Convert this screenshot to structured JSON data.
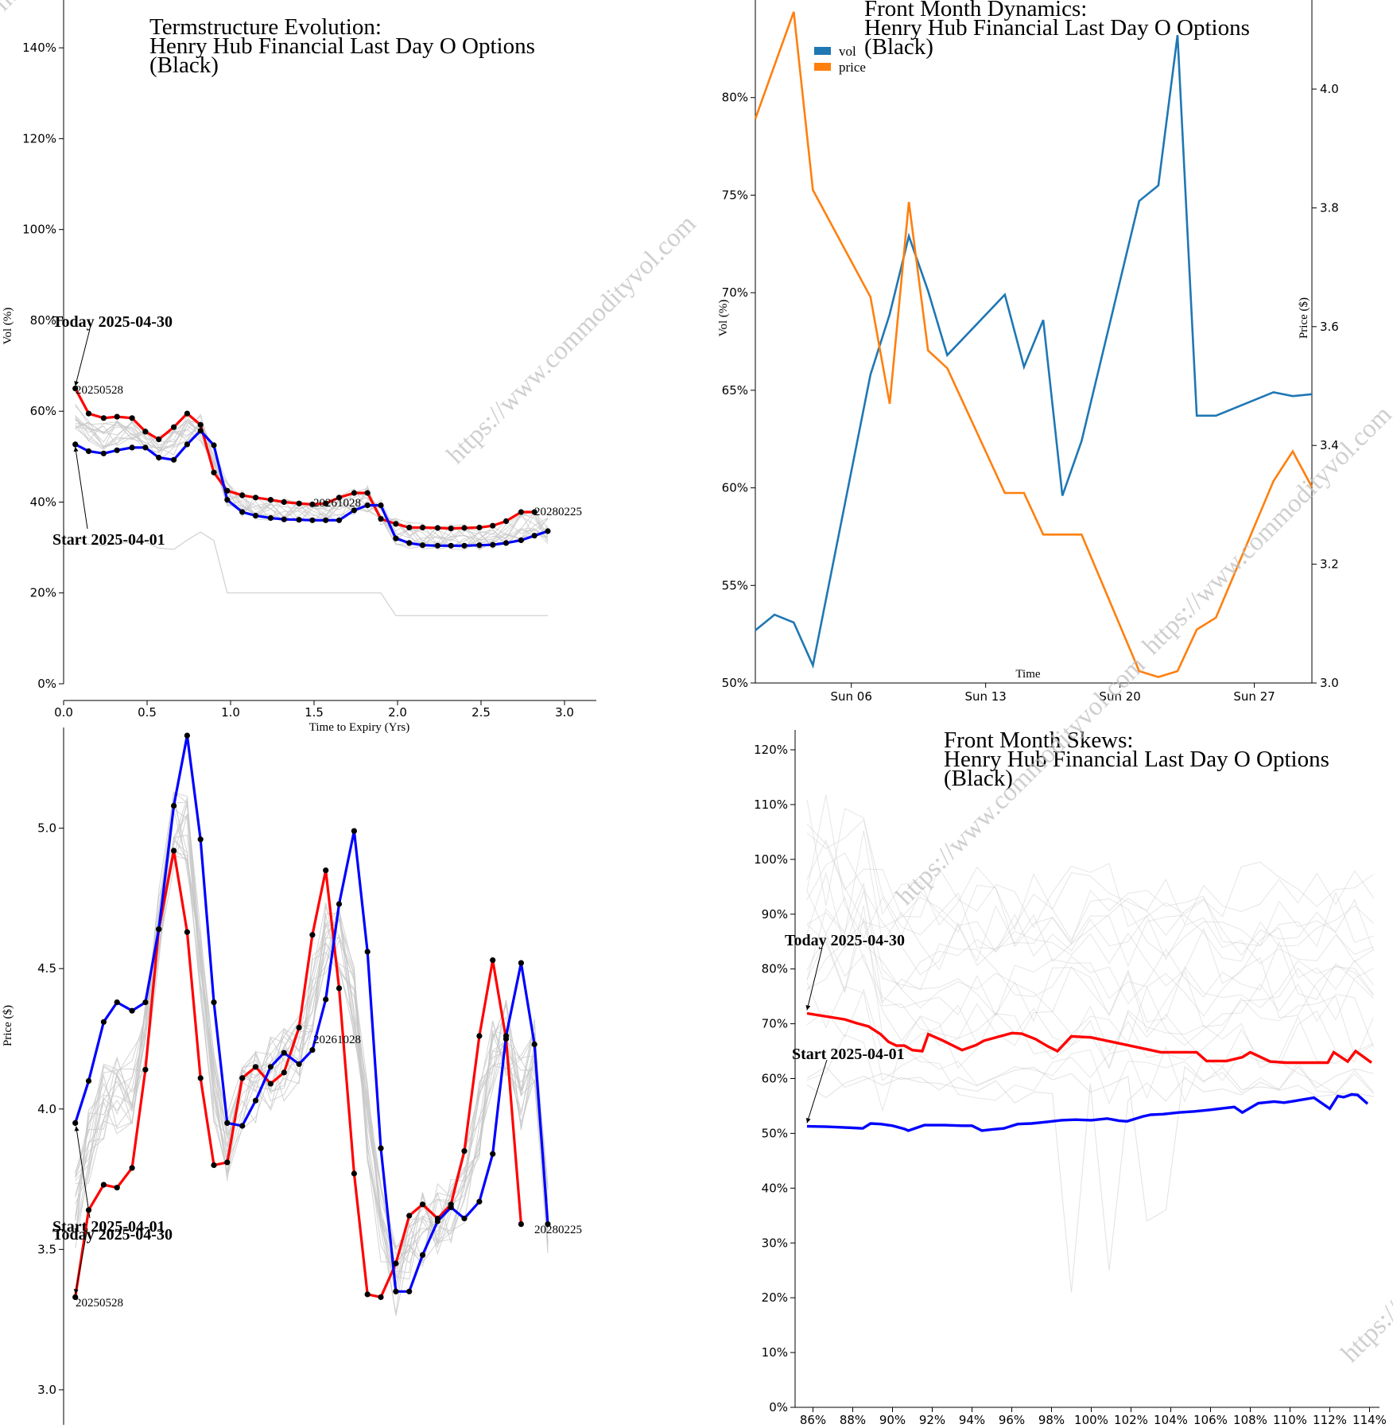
{
  "watermark": "https://www.commodityvol.com",
  "colors": {
    "today": "#ff0000",
    "start": "#0000ff",
    "history": "#c8c8c8",
    "vol": "#1f77b4",
    "price": "#ff7f0e",
    "dot": "#000000"
  },
  "chart_data": [
    {
      "id": "termstructure",
      "type": "line",
      "title": [
        "Termstructure Evolution:",
        "Henry Hub Financial Last Day O Options",
        "(Black)"
      ],
      "xlabel": "Time to Expiry (Yrs)",
      "ylabel": "Vol (%)",
      "xlim": [
        0,
        3.18
      ],
      "ylim": [
        0,
        1.5
      ],
      "xticks": [
        0.0,
        0.5,
        1.0,
        1.5,
        2.0,
        2.5,
        3.0
      ],
      "xtick_labels": [
        "0.0",
        "0.5",
        "1.0",
        "1.5",
        "2.0",
        "2.5",
        "3.0"
      ],
      "yticks": [
        0,
        0.2,
        0.4,
        0.6,
        0.8,
        1.0,
        1.2,
        1.4
      ],
      "ytick_labels": [
        "0%",
        "20%",
        "40%",
        "60%",
        "80%",
        "100%",
        "120%",
        "140%"
      ],
      "annotations": {
        "today_label": "Today 2025-04-30",
        "start_label": "Start 2025-04-01",
        "first_contract": "20250528",
        "mid_contract": "20261028",
        "last_contract": "20280225"
      },
      "x": [
        0.07,
        0.15,
        0.24,
        0.32,
        0.41,
        0.49,
        0.57,
        0.66,
        0.74,
        0.82,
        0.9,
        0.98,
        1.07,
        1.15,
        1.24,
        1.32,
        1.41,
        1.49,
        1.57,
        1.65,
        1.74,
        1.82,
        1.9,
        1.99,
        2.07,
        2.15,
        2.24,
        2.32,
        2.4,
        2.49,
        2.57,
        2.65,
        2.74,
        2.82,
        2.9
      ],
      "series": [
        {
          "name": "Today 2025-04-30",
          "role": "today",
          "values": [
            0.65,
            0.595,
            0.585,
            0.588,
            0.585,
            0.555,
            0.538,
            0.565,
            0.595,
            0.57,
            0.465,
            0.425,
            0.415,
            0.41,
            0.405,
            0.4,
            0.397,
            0.395,
            0.397,
            0.41,
            0.42,
            0.42,
            0.363,
            0.352,
            0.344,
            0.344,
            0.343,
            0.342,
            0.343,
            0.344,
            0.348,
            0.358,
            0.378,
            0.378,
            null
          ]
        },
        {
          "name": "Start 2025-04-01",
          "role": "start",
          "values": [
            0.527,
            0.512,
            0.507,
            0.514,
            0.52,
            0.52,
            0.498,
            0.493,
            0.527,
            0.557,
            0.525,
            0.405,
            0.378,
            0.37,
            0.365,
            0.362,
            0.361,
            0.36,
            0.36,
            0.36,
            0.382,
            0.393,
            0.393,
            0.32,
            0.31,
            0.305,
            0.304,
            0.304,
            0.304,
            0.305,
            0.306,
            0.31,
            0.316,
            0.326,
            0.336
          ]
        }
      ]
    },
    {
      "id": "dynamics",
      "type": "line",
      "title": [
        "Front Month Dynamics:",
        "Henry Hub Financial Last Day O Options",
        "(Black)"
      ],
      "xlabel": "Time",
      "ylabel": "Vol (%)",
      "y2label": "Price ($)",
      "legend": [
        "vol",
        "price"
      ],
      "legend_position": "top-left",
      "xlim": [
        "2025-03-31",
        "2025-04-30"
      ],
      "ylim": [
        0.5,
        0.85
      ],
      "y2lim": [
        3.0,
        4.15
      ],
      "xticks": [
        "2025-04-06",
        "2025-04-13",
        "2025-04-20",
        "2025-04-27"
      ],
      "xtick_labels": [
        "Sun 06",
        "Sun 13",
        "Sun 20",
        "Sun 27"
      ],
      "yticks": [
        0.5,
        0.55,
        0.6,
        0.65,
        0.7,
        0.75,
        0.8
      ],
      "ytick_labels": [
        "50%",
        "55%",
        "60%",
        "65%",
        "70%",
        "75%",
        "80%"
      ],
      "y2ticks": [
        3.0,
        3.2,
        3.4,
        3.6,
        3.8,
        4.0
      ],
      "y2tick_labels": [
        "3.0",
        "3.2",
        "3.4",
        "3.6",
        "3.8",
        "4.0"
      ],
      "x": [
        "2025-04-01",
        "2025-04-02",
        "2025-04-03",
        "2025-04-04",
        "2025-04-07",
        "2025-04-08",
        "2025-04-09",
        "2025-04-10",
        "2025-04-11",
        "2025-04-14",
        "2025-04-15",
        "2025-04-16",
        "2025-04-17",
        "2025-04-18",
        "2025-04-21",
        "2025-04-22",
        "2025-04-23",
        "2025-04-24",
        "2025-04-25",
        "2025-04-28",
        "2025-04-29",
        "2025-04-30"
      ],
      "series": [
        {
          "name": "vol",
          "axis": "left",
          "values": [
            0.527,
            0.535,
            0.531,
            0.509,
            0.658,
            0.689,
            0.729,
            0.701,
            0.668,
            0.699,
            0.662,
            0.686,
            0.596,
            0.624,
            0.747,
            0.755,
            0.832,
            0.637,
            0.637,
            0.649,
            0.647,
            0.648
          ]
        },
        {
          "name": "price",
          "axis": "right",
          "values": [
            3.95,
            4.04,
            4.13,
            3.83,
            3.65,
            3.47,
            3.81,
            3.56,
            3.53,
            3.32,
            3.32,
            3.25,
            3.25,
            3.25,
            3.02,
            3.01,
            3.02,
            3.09,
            3.11,
            3.34,
            3.39,
            3.33
          ]
        }
      ]
    },
    {
      "id": "price_term",
      "type": "line",
      "title": [],
      "xlabel": "",
      "ylabel": "Price ($)",
      "xlim": [
        0,
        3.18
      ],
      "ylim": [
        2.98,
        5.35
      ],
      "yticks": [
        3.0,
        3.5,
        4.0,
        4.5,
        5.0
      ],
      "ytick_labels": [
        "3.0",
        "3.5",
        "4.0",
        "4.5",
        "5.0"
      ],
      "annotations": {
        "start_label": "Start 2025-04-01",
        "today_label": "Today 2025-04-30",
        "first_contract": "20250528",
        "mid_contract": "20261028",
        "last_contract": "20280225"
      },
      "x": [
        0.07,
        0.15,
        0.24,
        0.32,
        0.41,
        0.49,
        0.57,
        0.66,
        0.74,
        0.82,
        0.9,
        0.98,
        1.07,
        1.15,
        1.24,
        1.32,
        1.41,
        1.49,
        1.57,
        1.65,
        1.74,
        1.82,
        1.9,
        1.99,
        2.07,
        2.15,
        2.24,
        2.32,
        2.4,
        2.49,
        2.57,
        2.65,
        2.74,
        2.82,
        2.9
      ],
      "series": [
        {
          "name": "Today 2025-04-30",
          "role": "today",
          "values": [
            3.33,
            3.64,
            3.73,
            3.72,
            3.79,
            4.14,
            4.64,
            4.92,
            4.63,
            4.11,
            3.8,
            3.81,
            4.11,
            4.15,
            4.09,
            4.13,
            4.29,
            4.62,
            4.85,
            4.43,
            3.77,
            3.34,
            3.33,
            3.45,
            3.62,
            3.66,
            3.61,
            3.66,
            3.85,
            4.26,
            4.53,
            4.25,
            3.59,
            null,
            null
          ]
        },
        {
          "name": "Start 2025-04-01",
          "role": "start",
          "values": [
            3.95,
            4.1,
            4.31,
            4.38,
            4.35,
            4.38,
            4.64,
            5.08,
            5.33,
            4.96,
            4.38,
            3.95,
            3.94,
            4.03,
            4.15,
            4.2,
            4.16,
            4.21,
            4.39,
            4.73,
            4.99,
            4.56,
            3.86,
            3.35,
            3.35,
            3.48,
            3.6,
            3.65,
            3.61,
            3.67,
            3.84,
            4.26,
            4.52,
            4.23,
            3.59
          ]
        }
      ]
    },
    {
      "id": "skews",
      "type": "line",
      "title": [
        "Front Month Skews:",
        "Henry Hub Financial Last Day O Options",
        "(Black)"
      ],
      "xlabel": "",
      "ylabel": "",
      "xlim": [
        0.851,
        1.145
      ],
      "ylim": [
        0,
        1.23
      ],
      "xticks": [
        0.86,
        0.88,
        0.9,
        0.92,
        0.94,
        0.96,
        0.98,
        1.0,
        1.02,
        1.04,
        1.06,
        1.08,
        1.1,
        1.12,
        1.14
      ],
      "xtick_labels": [
        "86%",
        "88%",
        "90%",
        "92%",
        "94%",
        "96%",
        "98%",
        "100%",
        "102%",
        "104%",
        "106%",
        "108%",
        "110%",
        "112%",
        "114%"
      ],
      "yticks": [
        0,
        0.1,
        0.2,
        0.3,
        0.4,
        0.5,
        0.6,
        0.7,
        0.8,
        0.9,
        1.0,
        1.1,
        1.2
      ],
      "ytick_labels": [
        "0%",
        "10%",
        "20%",
        "30%",
        "40%",
        "50%",
        "60%",
        "70%",
        "80%",
        "90%",
        "100%",
        "110%",
        "120%"
      ],
      "annotations": {
        "today_label": "Today 2025-04-30",
        "start_label": "Start 2025-04-01"
      },
      "series": [
        {
          "name": "Today 2025-04-30",
          "role": "today",
          "x": [
            0.857,
            0.876,
            0.882,
            0.888,
            0.894,
            0.898,
            0.902,
            0.906,
            0.91,
            0.915,
            0.918,
            0.925,
            0.935,
            0.942,
            0.946,
            0.953,
            0.96,
            0.965,
            0.972,
            0.978,
            0.983,
            0.99,
            1.0,
            1.035,
            1.053,
            1.058,
            1.068,
            1.076,
            1.08,
            1.09,
            1.098,
            1.112,
            1.119,
            1.122,
            1.129,
            1.133,
            1.141
          ],
          "y": [
            0.719,
            0.708,
            0.701,
            0.695,
            0.681,
            0.667,
            0.66,
            0.66,
            0.652,
            0.65,
            0.681,
            0.67,
            0.652,
            0.661,
            0.669,
            0.676,
            0.683,
            0.682,
            0.672,
            0.659,
            0.65,
            0.677,
            0.675,
            0.648,
            0.648,
            0.632,
            0.632,
            0.639,
            0.648,
            0.631,
            0.629,
            0.629,
            0.629,
            0.648,
            0.631,
            0.65,
            0.629
          ]
        },
        {
          "name": "Start 2025-04-01",
          "role": "start",
          "x": [
            0.857,
            0.867,
            0.874,
            0.88,
            0.885,
            0.889,
            0.894,
            0.9,
            0.906,
            0.908,
            0.916,
            0.922,
            0.926,
            0.935,
            0.94,
            0.945,
            0.95,
            0.956,
            0.963,
            0.97,
            0.978,
            0.985,
            0.992,
            1.0,
            1.008,
            1.014,
            1.018,
            1.026,
            1.03,
            1.036,
            1.044,
            1.052,
            1.06,
            1.067,
            1.072,
            1.076,
            1.084,
            1.092,
            1.097,
            1.102,
            1.107,
            1.112,
            1.116,
            1.12,
            1.124,
            1.127,
            1.131,
            1.134,
            1.139
          ],
          "y": [
            0.513,
            0.512,
            0.511,
            0.51,
            0.509,
            0.518,
            0.517,
            0.514,
            0.508,
            0.505,
            0.515,
            0.515,
            0.515,
            0.514,
            0.514,
            0.505,
            0.507,
            0.509,
            0.517,
            0.518,
            0.521,
            0.524,
            0.525,
            0.524,
            0.527,
            0.523,
            0.522,
            0.531,
            0.534,
            0.535,
            0.538,
            0.54,
            0.543,
            0.546,
            0.548,
            0.538,
            0.555,
            0.558,
            0.556,
            0.559,
            0.562,
            0.565,
            0.555,
            0.545,
            0.568,
            0.566,
            0.571,
            0.57,
            0.554
          ]
        }
      ]
    }
  ]
}
